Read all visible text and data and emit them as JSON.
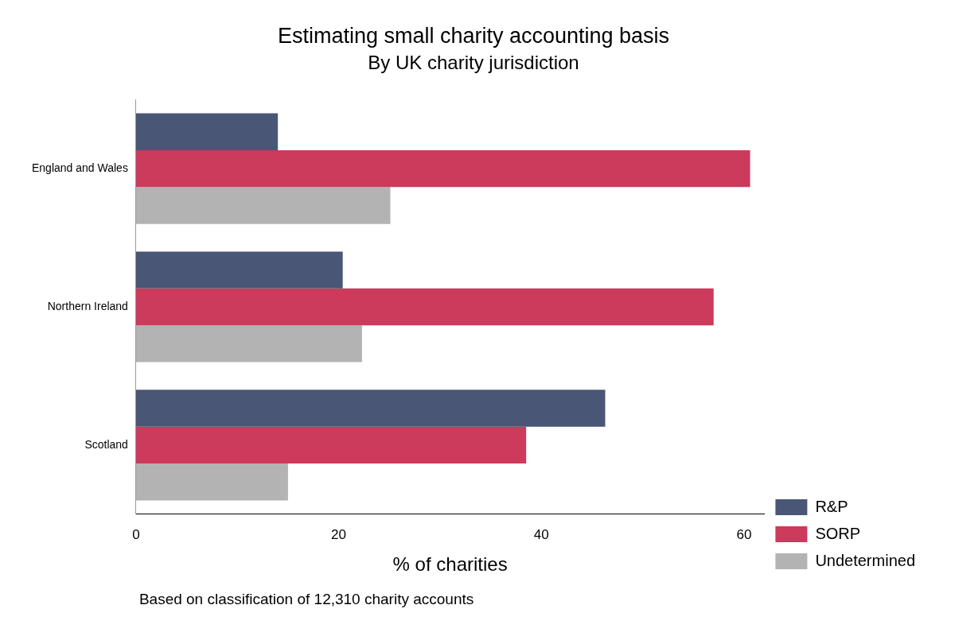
{
  "chart_data": {
    "type": "bar",
    "orientation": "horizontal",
    "title": "Estimating small charity accounting basis",
    "subtitle": "By UK charity jurisdiction",
    "xlabel": "% of charities",
    "categories": [
      "England and Wales",
      "Northern Ireland",
      "Scotland"
    ],
    "series": [
      {
        "name": "R&P",
        "color": "#4a5675",
        "values": [
          14.0,
          20.4,
          46.3
        ]
      },
      {
        "name": "SORP",
        "color": "#cc3a5c",
        "values": [
          60.6,
          57.0,
          38.5
        ]
      },
      {
        "name": "Undetermined",
        "color": "#b3b3b3",
        "values": [
          25.1,
          22.3,
          15.0
        ]
      }
    ],
    "xlim": [
      0,
      62
    ],
    "xticks": [
      0,
      20,
      40,
      60
    ],
    "grid": false,
    "legend": "bottom right",
    "annotations": [
      "Based on classification of 12,310 charity accounts"
    ]
  }
}
